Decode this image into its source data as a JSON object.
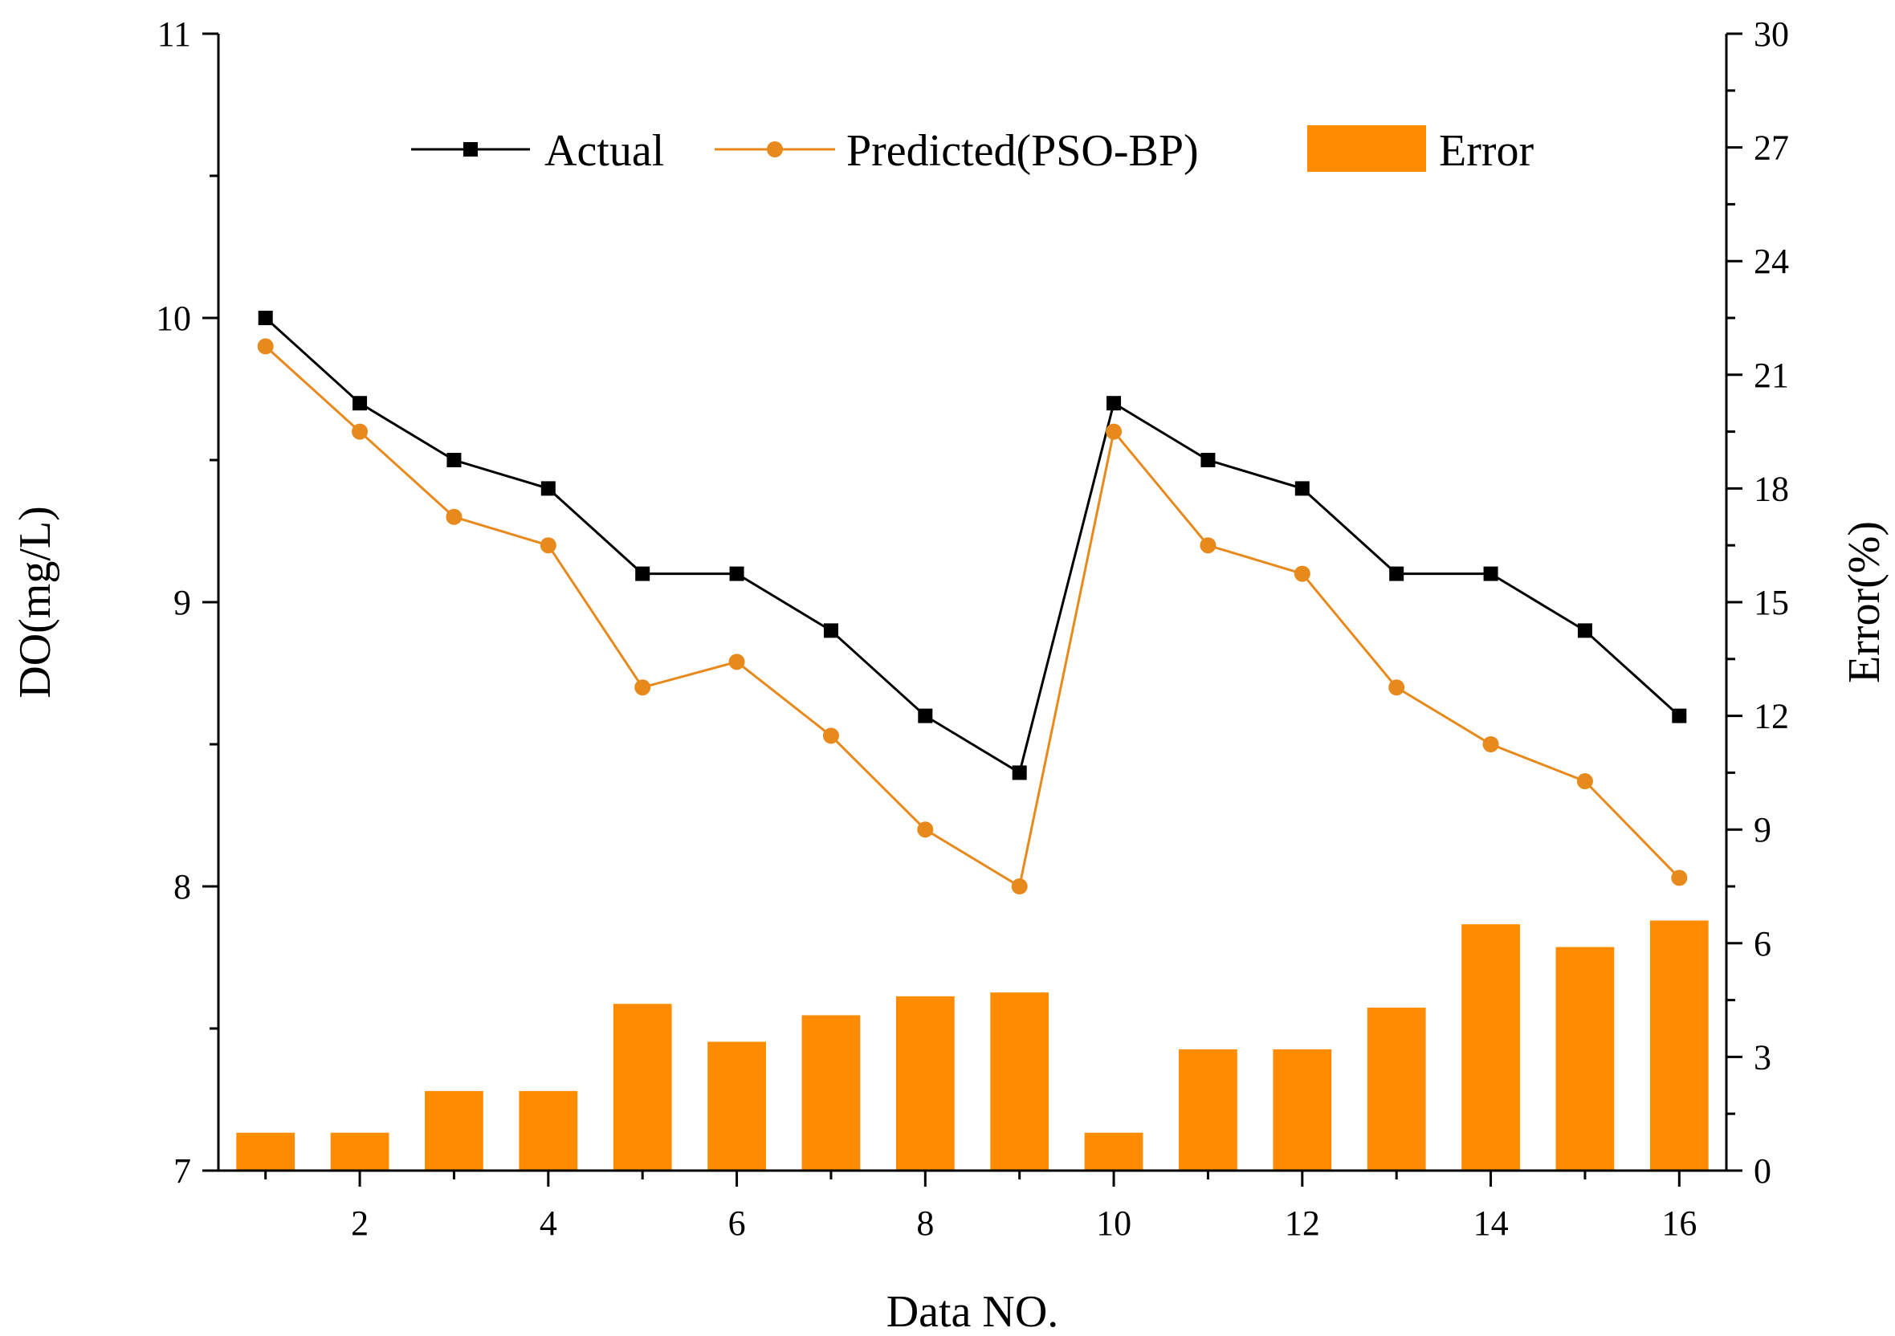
{
  "chart_data": {
    "type": "bar+line",
    "title": "",
    "xlabel": "Data NO.",
    "ylabel_left": "DO(mg/L)",
    "ylabel_right": "Error(%)",
    "xlim": [
      0.5,
      16.5
    ],
    "ylim_left": [
      7,
      11
    ],
    "ylim_right": [
      0,
      30
    ],
    "x_ticks": [
      2,
      4,
      6,
      8,
      10,
      12,
      14,
      16
    ],
    "y_left_ticks": [
      7,
      8,
      9,
      10,
      11
    ],
    "y_right_ticks": [
      0,
      3,
      6,
      9,
      12,
      15,
      18,
      21,
      24,
      27,
      30
    ],
    "legend_position": "top-center",
    "grid": false,
    "x": [
      1,
      2,
      3,
      4,
      5,
      6,
      7,
      8,
      9,
      10,
      11,
      12,
      13,
      14,
      15,
      16
    ],
    "series": [
      {
        "name": "Actual",
        "type": "line",
        "axis": "left",
        "marker": "square",
        "color": "#000000",
        "values": [
          10.0,
          9.7,
          9.5,
          9.4,
          9.1,
          9.1,
          8.9,
          8.6,
          8.4,
          9.7,
          9.5,
          9.4,
          9.1,
          9.1,
          8.9,
          8.6
        ]
      },
      {
        "name": "Predicted(PSO-BP)",
        "type": "line",
        "axis": "left",
        "marker": "circle",
        "color": "#e8891c",
        "values": [
          9.9,
          9.6,
          9.3,
          9.2,
          8.7,
          8.79,
          8.53,
          8.2,
          8.0,
          9.6,
          9.2,
          9.1,
          8.7,
          8.5,
          8.37,
          8.03
        ]
      },
      {
        "name": "Error",
        "type": "bar",
        "axis": "right",
        "color": "#ff8c00",
        "values": [
          1.0,
          1.0,
          2.1,
          2.1,
          4.4,
          3.4,
          4.1,
          4.6,
          4.7,
          1.0,
          3.2,
          3.2,
          4.3,
          6.5,
          5.9,
          6.6
        ]
      }
    ]
  }
}
